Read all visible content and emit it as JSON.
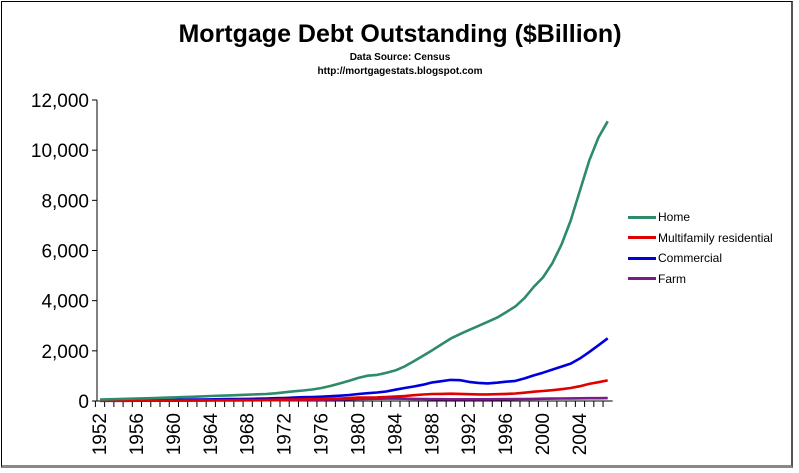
{
  "chart_data": {
    "type": "line",
    "title": "Mortgage Debt Outstanding ($Billion)",
    "subtitle": "Data Source: Census",
    "source_url": "http://mortgagestats.blogspot.com",
    "xlabel": "",
    "ylabel": "",
    "ylim": [
      0,
      12000
    ],
    "yticks": [
      "0",
      "2,000",
      "4,000",
      "6,000",
      "8,000",
      "10,000",
      "12,000"
    ],
    "ytick_values": [
      0,
      2000,
      4000,
      6000,
      8000,
      10000,
      12000
    ],
    "xticks": [
      "1952",
      "1956",
      "1960",
      "1964",
      "1968",
      "1972",
      "1976",
      "1980",
      "1984",
      "1988",
      "1992",
      "1996",
      "2000",
      "2004"
    ],
    "x_start": 1952,
    "x": [
      1952,
      1953,
      1954,
      1955,
      1956,
      1957,
      1958,
      1959,
      1960,
      1961,
      1962,
      1963,
      1964,
      1965,
      1966,
      1967,
      1968,
      1969,
      1970,
      1971,
      1972,
      1973,
      1974,
      1975,
      1976,
      1977,
      1978,
      1979,
      1980,
      1981,
      1982,
      1983,
      1984,
      1985,
      1986,
      1987,
      1988,
      1989,
      1990,
      1991,
      1992,
      1993,
      1994,
      1995,
      1996,
      1997,
      1998,
      1999,
      2000,
      2001,
      2002,
      2003,
      2004,
      2005,
      2006,
      2007
    ],
    "grid": false,
    "legend": "right",
    "series": [
      {
        "name": "Home",
        "color": "#2e8b68",
        "values": [
          58,
          66,
          76,
          89,
          100,
          108,
          118,
          131,
          142,
          155,
          168,
          183,
          198,
          213,
          224,
          237,
          253,
          268,
          280,
          307,
          345,
          385,
          419,
          459,
          519,
          603,
          701,
          805,
          920,
          1010,
          1040,
          1120,
          1220,
          1381,
          1587,
          1806,
          2027,
          2258,
          2488,
          2667,
          2836,
          2996,
          3156,
          3319,
          3540,
          3773,
          4112,
          4553,
          4926,
          5488,
          6236,
          7197,
          8397,
          9580,
          10500,
          11150
        ]
      },
      {
        "name": "Multifamily residential",
        "color": "#e00000",
        "values": [
          10,
          11,
          12,
          13,
          14,
          15,
          17,
          19,
          21,
          23,
          25,
          27,
          29,
          31,
          33,
          35,
          38,
          40,
          45,
          50,
          55,
          60,
          65,
          70,
          75,
          85,
          100,
          115,
          135,
          140,
          145,
          160,
          180,
          200,
          230,
          260,
          280,
          285,
          290,
          285,
          270,
          262,
          262,
          270,
          285,
          300,
          330,
          370,
          400,
          430,
          470,
          520,
          590,
          680,
          750,
          820
        ]
      },
      {
        "name": "Commercial",
        "color": "#0000dd",
        "values": [
          20,
          22,
          24,
          26,
          30,
          33,
          36,
          40,
          45,
          50,
          55,
          60,
          65,
          70,
          75,
          80,
          85,
          90,
          100,
          110,
          120,
          135,
          150,
          160,
          170,
          190,
          210,
          240,
          280,
          310,
          340,
          380,
          450,
          520,
          580,
          650,
          740,
          790,
          840,
          830,
          760,
          720,
          700,
          730,
          770,
          800,
          900,
          1020,
          1130,
          1250,
          1370,
          1490,
          1700,
          1950,
          2220,
          2500
        ]
      },
      {
        "name": "Farm",
        "color": "#7b1a8b",
        "values": [
          7,
          8,
          8,
          9,
          10,
          10,
          11,
          12,
          13,
          14,
          15,
          17,
          18,
          20,
          22,
          24,
          26,
          28,
          30,
          32,
          35,
          38,
          42,
          46,
          51,
          56,
          63,
          70,
          80,
          88,
          92,
          94,
          95,
          92,
          85,
          78,
          73,
          70,
          68,
          67,
          67,
          67,
          68,
          70,
          72,
          75,
          80,
          85,
          90,
          95,
          100,
          105,
          108,
          110,
          112,
          115
        ]
      }
    ]
  }
}
